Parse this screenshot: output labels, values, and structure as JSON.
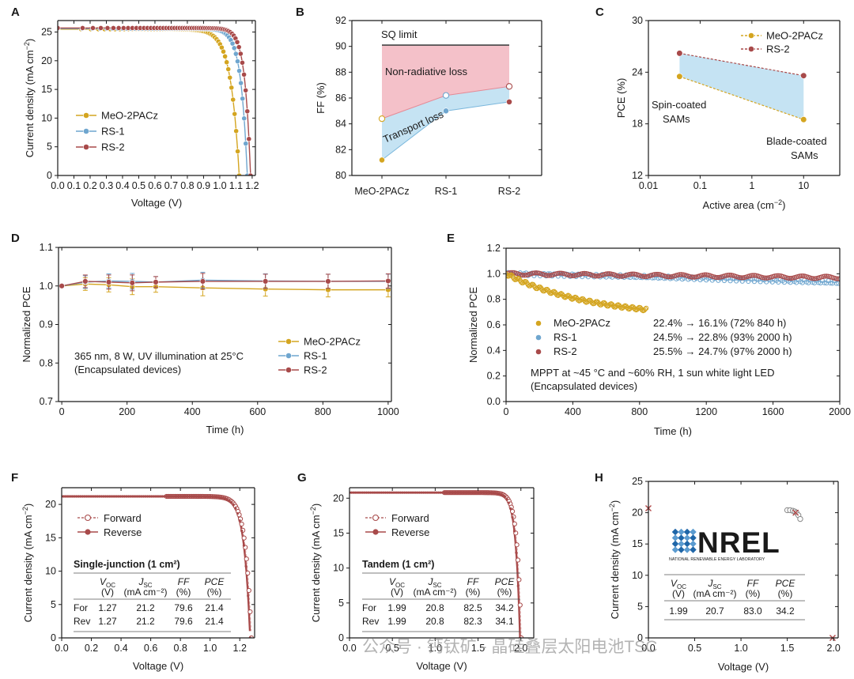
{
  "colors": {
    "meo": "#d4a520",
    "rs1": "#6fa6cf",
    "rs2": "#a84a4a",
    "pink": "#f2b6bf",
    "blue": "#bfe0f2",
    "axis": "#1a1a1a",
    "nrel": "#1f66a8"
  },
  "chart_data": [
    {
      "id": "A",
      "type": "line",
      "panel_label": "A",
      "xlabel": "Voltage (V)",
      "ylabel_main": "Current density (mA cm",
      "ylabel_sup": "−2",
      "ylabel_end": ")",
      "xlim": [
        0,
        1.22
      ],
      "ylim": [
        0,
        27
      ],
      "xticks": [
        0.0,
        0.1,
        0.2,
        0.3,
        0.4,
        0.5,
        0.6,
        0.7,
        0.8,
        0.9,
        1.0,
        1.1,
        1.2
      ],
      "xtick_labels": [
        "0.0",
        "0.1",
        "0.2",
        "0.3",
        "0.4",
        "0.5",
        "0.6",
        "0.7",
        "0.8",
        "0.9",
        "1.0",
        "1.1",
        "1.2"
      ],
      "yticks": [
        0,
        5,
        10,
        15,
        20,
        25
      ],
      "ytick_labels": [
        "0",
        "5",
        "10",
        "15",
        "20",
        "25"
      ],
      "legend_position": "lower-left",
      "series": [
        {
          "name": "MeO-2PACz",
          "color_key": "meo",
          "jsc": 25.5,
          "voc": 1.12,
          "vt": 0.052
        },
        {
          "name": "RS-1",
          "color_key": "rs1",
          "jsc": 25.6,
          "voc": 1.17,
          "vt": 0.04
        },
        {
          "name": "RS-2",
          "color_key": "rs2",
          "jsc": 25.7,
          "voc": 1.19,
          "vt": 0.035
        }
      ]
    },
    {
      "id": "B",
      "type": "area",
      "panel_label": "B",
      "xlabel": "",
      "ylabel": "FF (%)",
      "categories": [
        "MeO-2PACz",
        "RS-1",
        "RS-2"
      ],
      "ylim": [
        80,
        92
      ],
      "yticks": [
        80,
        82,
        84,
        86,
        88,
        90,
        92
      ],
      "ytick_labels": [
        "80",
        "82",
        "84",
        "86",
        "88",
        "90",
        "92"
      ],
      "sq_limit": 90.1,
      "sq_label": "SQ limit",
      "upper_values": [
        84.4,
        86.2,
        86.9
      ],
      "lower_values": [
        81.2,
        85.0,
        85.7
      ],
      "nonrad_label": "Non-radiative loss",
      "transport_label": "Transport loss"
    },
    {
      "id": "C",
      "type": "scatter",
      "panel_label": "C",
      "xlabel_main": "Active area (cm",
      "xlabel_sup": "−2",
      "xlabel_end": ")",
      "ylabel": "PCE (%)",
      "xscale": "log",
      "xlim": [
        0.01,
        50
      ],
      "ylim": [
        12,
        30
      ],
      "xticks": [
        0.01,
        0.1,
        1,
        10
      ],
      "xtick_labels": [
        "0.01",
        "0.1",
        "1",
        "10"
      ],
      "yticks": [
        12,
        18,
        24,
        30
      ],
      "ytick_labels": [
        "12",
        "18",
        "24",
        "30"
      ],
      "legend_position": "top-right",
      "series": [
        {
          "name": "MeO-2PACz",
          "color_key": "meo",
          "x": [
            0.04,
            10
          ],
          "y": [
            23.5,
            18.5
          ]
        },
        {
          "name": "RS-2",
          "color_key": "rs2",
          "x": [
            0.04,
            10
          ],
          "y": [
            26.2,
            23.6
          ]
        }
      ],
      "annotations": [
        "Spin-coated",
        "SAMs",
        "Blade-coated",
        "SAMs"
      ]
    },
    {
      "id": "D",
      "type": "line",
      "panel_label": "D",
      "xlabel": "Time (h)",
      "ylabel": "Normalized PCE",
      "xlim": [
        -10,
        1010
      ],
      "ylim": [
        0.7,
        1.1
      ],
      "xticks": [
        0,
        200,
        400,
        600,
        800,
        1000
      ],
      "xtick_labels": [
        "0",
        "200",
        "400",
        "600",
        "800",
        "1000"
      ],
      "yticks": [
        0.7,
        0.8,
        0.9,
        1.0,
        1.1
      ],
      "ytick_labels": [
        "0.7",
        "0.8",
        "0.9",
        "1.0",
        "1.1"
      ],
      "x": [
        0,
        72,
        144,
        216,
        288,
        432,
        624,
        816,
        1000
      ],
      "series": [
        {
          "name": "MeO-2PACz",
          "color_key": "meo",
          "values": [
            1.0,
            1.005,
            1.003,
            0.998,
            0.998,
            0.995,
            0.992,
            0.99,
            0.99
          ]
        },
        {
          "name": "RS-1",
          "color_key": "rs1",
          "values": [
            1.0,
            1.01,
            1.013,
            1.012,
            1.01,
            1.015,
            1.013,
            1.012,
            1.012
          ]
        },
        {
          "name": "RS-2",
          "color_key": "rs2",
          "values": [
            1.0,
            1.012,
            1.01,
            1.008,
            1.01,
            1.012,
            1.012,
            1.012,
            1.013
          ]
        }
      ],
      "annotations": [
        "365 nm, 8 W, UV illumination at 25°C",
        "(Encapsulated devices)"
      ]
    },
    {
      "id": "E",
      "type": "scatter",
      "panel_label": "E",
      "xlabel": "Time (h)",
      "ylabel": "Normalized PCE",
      "xlim": [
        0,
        2000
      ],
      "ylim": [
        0,
        1.2
      ],
      "xticks": [
        0,
        400,
        800,
        1200,
        1600,
        2000
      ],
      "xtick_labels": [
        "0",
        "400",
        "800",
        "1200",
        "1600",
        "2000"
      ],
      "yticks": [
        0.0,
        0.2,
        0.4,
        0.6,
        0.8,
        1.0,
        1.2
      ],
      "ytick_labels": [
        "0.0",
        "0.2",
        "0.4",
        "0.6",
        "0.8",
        "1.0",
        "1.2"
      ],
      "series": [
        {
          "name": "MeO-2PACz",
          "color_key": "meo",
          "end_x": 840,
          "end_y": 0.72,
          "stats": "22.4% → 16.1% (72% 840 h)"
        },
        {
          "name": "RS-1",
          "color_key": "rs1",
          "end_x": 2000,
          "end_y": 0.93,
          "stats": "24.5% → 22.8% (93% 2000 h)"
        },
        {
          "name": "RS-2",
          "color_key": "rs2",
          "end_x": 2000,
          "end_y": 0.97,
          "stats": "25.5% → 24.7% (97% 2000 h)"
        }
      ],
      "annotations": [
        "MPPT at ~45 °C and ~60% RH, 1 sun white light LED",
        "(Encapsulated devices)"
      ]
    },
    {
      "id": "F",
      "type": "line",
      "panel_label": "F",
      "xlabel": "Voltage (V)",
      "ylabel_main": "Current density (mA cm",
      "ylabel_sup": "−2",
      "ylabel_end": ")",
      "xlim": [
        0,
        1.3
      ],
      "ylim": [
        0,
        22.5
      ],
      "xticks": [
        0.0,
        0.2,
        0.4,
        0.6,
        0.8,
        1.0,
        1.2
      ],
      "xtick_labels": [
        "0.0",
        "0.2",
        "0.4",
        "0.6",
        "0.8",
        "1.0",
        "1.2"
      ],
      "yticks": [
        0,
        5,
        10,
        15,
        20
      ],
      "ytick_labels": [
        "0",
        "5",
        "10",
        "15",
        "20"
      ],
      "jsc": 21.2,
      "voc": 1.27,
      "vt": 0.04,
      "series": [
        {
          "name": "Forward",
          "color_key": "rs2"
        },
        {
          "name": "Reverse",
          "color_key": "rs2"
        }
      ],
      "table_title": "Single-junction  (1 cm²)",
      "table_header": [
        [
          "V",
          "OC",
          "(V)"
        ],
        [
          "J",
          "SC",
          "(mA cm⁻²)"
        ],
        [
          "FF",
          "",
          "(%)"
        ],
        [
          "PCE",
          "",
          "(%)"
        ]
      ],
      "table_rows": [
        [
          "For",
          "1.27",
          "21.2",
          "79.6",
          "21.4"
        ],
        [
          "Rev",
          "1.27",
          "21.2",
          "79.6",
          "21.4"
        ]
      ]
    },
    {
      "id": "G",
      "type": "line",
      "panel_label": "G",
      "xlabel": "Voltage (V)",
      "ylabel_main": "Current density (mA cm",
      "ylabel_sup": "−2",
      "ylabel_end": ")",
      "xlim": [
        0,
        2.15
      ],
      "ylim": [
        0,
        21.5
      ],
      "xticks": [
        0.0,
        0.5,
        1.0,
        1.5,
        2.0
      ],
      "xtick_labels": [
        "0.0",
        "0.5",
        "1.0",
        "1.5",
        "2.0"
      ],
      "yticks": [
        0,
        5,
        10,
        15,
        20
      ],
      "ytick_labels": [
        "0",
        "5",
        "10",
        "15",
        "20"
      ],
      "jsc": 20.8,
      "voc": 1.99,
      "vt": 0.05,
      "series": [
        {
          "name": "Forward",
          "color_key": "rs2"
        },
        {
          "name": "Reverse",
          "color_key": "rs2"
        }
      ],
      "table_title": "Tandem  (1 cm²)",
      "table_header": [
        [
          "V",
          "OC",
          "(V)"
        ],
        [
          "J",
          "SC",
          "(mA cm⁻²)"
        ],
        [
          "FF",
          "",
          "(%)"
        ],
        [
          "PCE",
          "",
          "(%)"
        ]
      ],
      "table_rows": [
        [
          "For",
          "1.99",
          "20.8",
          "82.5",
          "34.2"
        ],
        [
          "Rev",
          "1.99",
          "20.8",
          "82.3",
          "34.1"
        ]
      ]
    },
    {
      "id": "H",
      "type": "scatter",
      "panel_label": "H",
      "xlabel": "Voltage (V)",
      "ylabel_main": "Current density (mA cm",
      "ylabel_sup": "−2",
      "ylabel_end": ")",
      "xlim": [
        0,
        2.05
      ],
      "ylim": [
        0,
        25
      ],
      "xticks": [
        0.0,
        0.5,
        1.0,
        1.5,
        2.0
      ],
      "xtick_labels": [
        "0.0",
        "0.5",
        "1.0",
        "1.5",
        "2.0"
      ],
      "yticks": [
        0,
        5,
        10,
        15,
        20,
        25
      ],
      "ytick_labels": [
        "0",
        "5",
        "10",
        "15",
        "20",
        "25"
      ],
      "points": [
        [
          1.5,
          20.4
        ],
        [
          1.53,
          20.4
        ],
        [
          1.56,
          20.3
        ],
        [
          1.58,
          20.2
        ],
        [
          1.6,
          20.0
        ],
        [
          1.62,
          19.6
        ],
        [
          1.64,
          19.0
        ]
      ],
      "marker_x": [
        [
          0.0,
          20.7
        ],
        [
          1.59,
          20.0
        ],
        [
          1.99,
          0.0
        ]
      ],
      "logo_text": "NREL",
      "logo_sub": "NATIONAL RENEWABLE ENERGY LABORATORY",
      "table_header": [
        [
          "V",
          "OC",
          "(V)"
        ],
        [
          "J",
          "SC",
          "(mA cm⁻²)"
        ],
        [
          "FF",
          "",
          "(%)"
        ],
        [
          "PCE",
          "",
          "(%)"
        ]
      ],
      "table_rows": [
        [
          "1.99",
          "20.7",
          "83.0",
          "34.2"
        ]
      ]
    }
  ],
  "watermark": "公众号 · 钙钛矿 - 晶硅叠层太阳电池TSC"
}
